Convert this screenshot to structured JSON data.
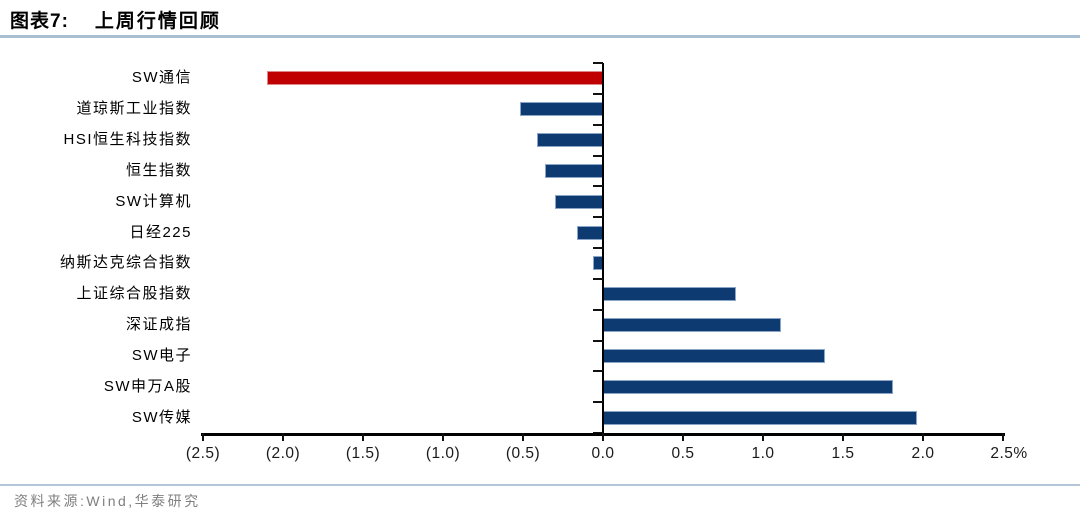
{
  "header": {
    "title_prefix": "图表7:",
    "title": "上周行情回顾"
  },
  "footer": {
    "source": "资料来源:Wind,华泰研究"
  },
  "chart_data": {
    "type": "bar",
    "orientation": "horizontal",
    "title": "上周行情回顾",
    "unit": "%",
    "categories": [
      "SW通信",
      "道琼斯工业指数",
      "HSI恒生科技指数",
      "恒生指数",
      "SW计算机",
      "日经225",
      "纳斯达克综合指数",
      "上证综合股指数",
      "深证成指",
      "SW电子",
      "SW申万A股",
      "SW传媒"
    ],
    "values": [
      -2.1,
      -0.52,
      -0.41,
      -0.36,
      -0.3,
      -0.16,
      -0.06,
      0.83,
      1.11,
      1.39,
      1.81,
      1.96
    ],
    "xlim": [
      -2.5,
      2.5
    ],
    "xticks": [
      -2.5,
      -2.0,
      -1.5,
      -1.0,
      -0.5,
      0.0,
      0.5,
      1.0,
      1.5,
      2.0,
      2.5
    ],
    "xtick_labels": [
      "(2.5)",
      "(2.0)",
      "(1.5)",
      "(1.0)",
      "(0.5)",
      "0.0",
      "0.5",
      "1.0",
      "1.5",
      "2.0",
      "2.5%"
    ],
    "grid": false,
    "legend": null,
    "bar_color": "#0e3a72",
    "highlight_color": "#c00000",
    "highlight_index": 0,
    "axis_color": "#000000",
    "accent_rule_color": "#a9bfd4"
  }
}
